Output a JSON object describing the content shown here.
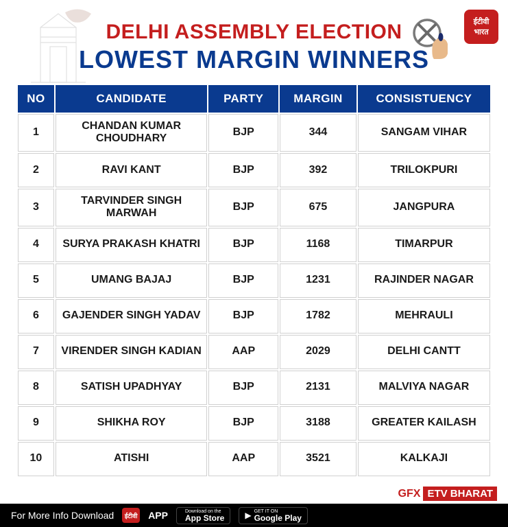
{
  "header": {
    "title_line1": "DELHI ASSEMBLY ELECTION",
    "title_line2": "LOWEST MARGIN WINNERS",
    "title_line1_color": "#c41e1e",
    "title_line2_color": "#0a3a8f",
    "logo_text_top": "ईटीवी",
    "logo_text_bottom": "भारत"
  },
  "table": {
    "header_bg": "#0a3a8f",
    "header_color": "#ffffff",
    "cell_border": "#d0d0d0",
    "columns": [
      "NO",
      "CANDIDATE",
      "PARTY",
      "MARGIN",
      "CONSISTUENCY"
    ],
    "rows": [
      {
        "no": "1",
        "candidate": "CHANDAN KUMAR CHOUDHARY",
        "party": "BJP",
        "margin": "344",
        "constituency": "SANGAM VIHAR"
      },
      {
        "no": "2",
        "candidate": "RAVI KANT",
        "party": "BJP",
        "margin": "392",
        "constituency": "TRILOKPURI"
      },
      {
        "no": "3",
        "candidate": "TARVINDER SINGH MARWAH",
        "party": "BJP",
        "margin": "675",
        "constituency": "JANGPURA"
      },
      {
        "no": "4",
        "candidate": "SURYA PRAKASH KHATRI",
        "party": "BJP",
        "margin": "1168",
        "constituency": "TIMARPUR"
      },
      {
        "no": "5",
        "candidate": "UMANG BAJAJ",
        "party": "BJP",
        "margin": "1231",
        "constituency": "RAJINDER NAGAR"
      },
      {
        "no": "6",
        "candidate": "GAJENDER SINGH YADAV",
        "party": "BJP",
        "margin": "1782",
        "constituency": "MEHRAULI"
      },
      {
        "no": "7",
        "candidate": "VIRENDER SINGH KADIAN",
        "party": "AAP",
        "margin": "2029",
        "constituency": "DELHI CANTT"
      },
      {
        "no": "8",
        "candidate": "SATISH UPADHYAY",
        "party": "BJP",
        "margin": "2131",
        "constituency": "MALVIYA NAGAR"
      },
      {
        "no": "9",
        "candidate": "SHIKHA ROY",
        "party": "BJP",
        "margin": "3188",
        "constituency": "GREATER KAILASH"
      },
      {
        "no": "10",
        "candidate": "ATISHI",
        "party": "AAP",
        "margin": "3521",
        "constituency": "KALKAJI"
      }
    ]
  },
  "footer": {
    "download_text": "For More Info Download",
    "app_label": "APP",
    "app_store_small": "Download on the",
    "app_store_big": "App Store",
    "play_store_small": "GET IT ON",
    "play_store_big": "Google Play",
    "gfx_label": "GFX",
    "brand_label": "ETV BHARAT"
  },
  "colors": {
    "brand_red": "#c41e1e",
    "brand_blue": "#0a3a8f",
    "black": "#000000",
    "white": "#ffffff"
  }
}
